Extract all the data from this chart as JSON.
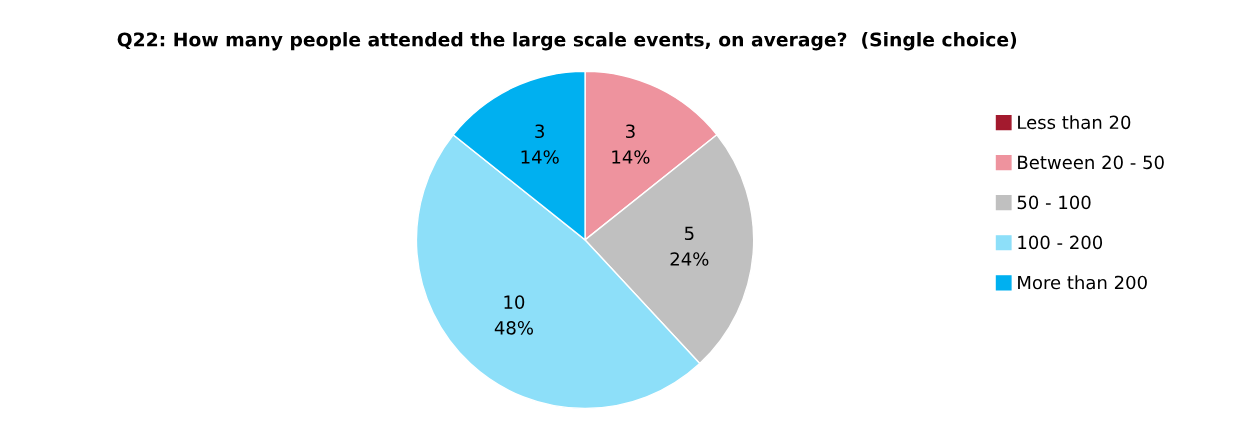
{
  "chart_data": {
    "type": "pie",
    "title": "Q22: How many people attended the large scale events, on average?  (Single choice)",
    "categories": [
      "Less than 20",
      "Between 20 - 50",
      "50 - 100",
      "100 - 200",
      "More than 200"
    ],
    "values": [
      0,
      3,
      5,
      10,
      3
    ],
    "colors": [
      "#a31a2e",
      "#ee939e",
      "#c0c0c0",
      "#8ddff9",
      "#00b0f0"
    ],
    "value_labels": [
      null,
      "3\n14%",
      "5\n24%",
      "10\n48%",
      "3\n14%"
    ],
    "legend": "right"
  }
}
